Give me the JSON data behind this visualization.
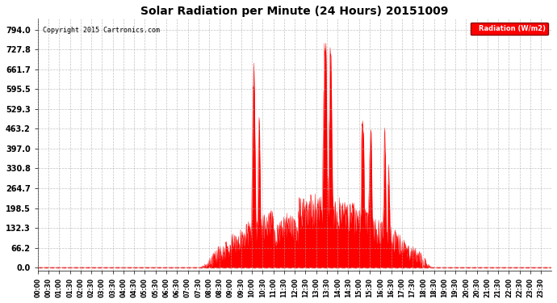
{
  "title": "Solar Radiation per Minute (24 Hours) 20151009",
  "copyright": "Copyright 2015 Cartronics.com",
  "legend_label": "Radiation (W/m2)",
  "ylabel": "",
  "background_color": "#ffffff",
  "plot_bg_color": "#ffffff",
  "fill_color": "#ff0000",
  "line_color": "#ff0000",
  "grid_color": "#aaaaaa",
  "zero_line_color": "#ff0000",
  "yticks": [
    0.0,
    66.2,
    132.3,
    198.5,
    264.7,
    330.8,
    397.0,
    463.2,
    529.3,
    595.5,
    661.7,
    727.8,
    794.0
  ],
  "ymax": 830.0,
  "ymin": -10.0,
  "total_minutes": 1440
}
